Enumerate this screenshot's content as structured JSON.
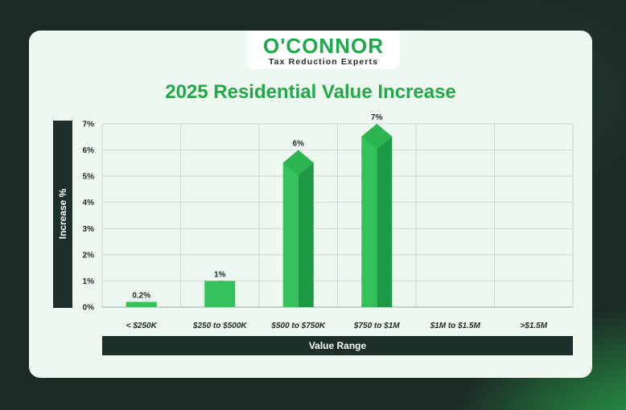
{
  "logo": {
    "brand": "O'CONNOR",
    "tagline": "Tax Reduction Experts"
  },
  "colors": {
    "accent": "#22a84a",
    "bar_light": "#33c25a",
    "bar_dark": "#1e9a44",
    "label_box": "#1d2f2a"
  },
  "chart_data": {
    "type": "bar",
    "title": "2025 Residential Value Increase",
    "xlabel": "Value Range",
    "ylabel": "Increase %",
    "categories": [
      "< $250K",
      "$250 to $500K",
      "$500 to $750K",
      "$750 to $1M",
      "$1M to $1.5M",
      ">$1.5M"
    ],
    "values": [
      0.2,
      1,
      6,
      7,
      0,
      0
    ],
    "data_labels": [
      "0.2%",
      "1%",
      "6%",
      "7%",
      "",
      ""
    ],
    "yticks": [
      "0%",
      "1%",
      "2%",
      "3%",
      "4%",
      "5%",
      "6%",
      "7%"
    ],
    "ylim": [
      0,
      7
    ],
    "grid": true,
    "legend": "none"
  }
}
